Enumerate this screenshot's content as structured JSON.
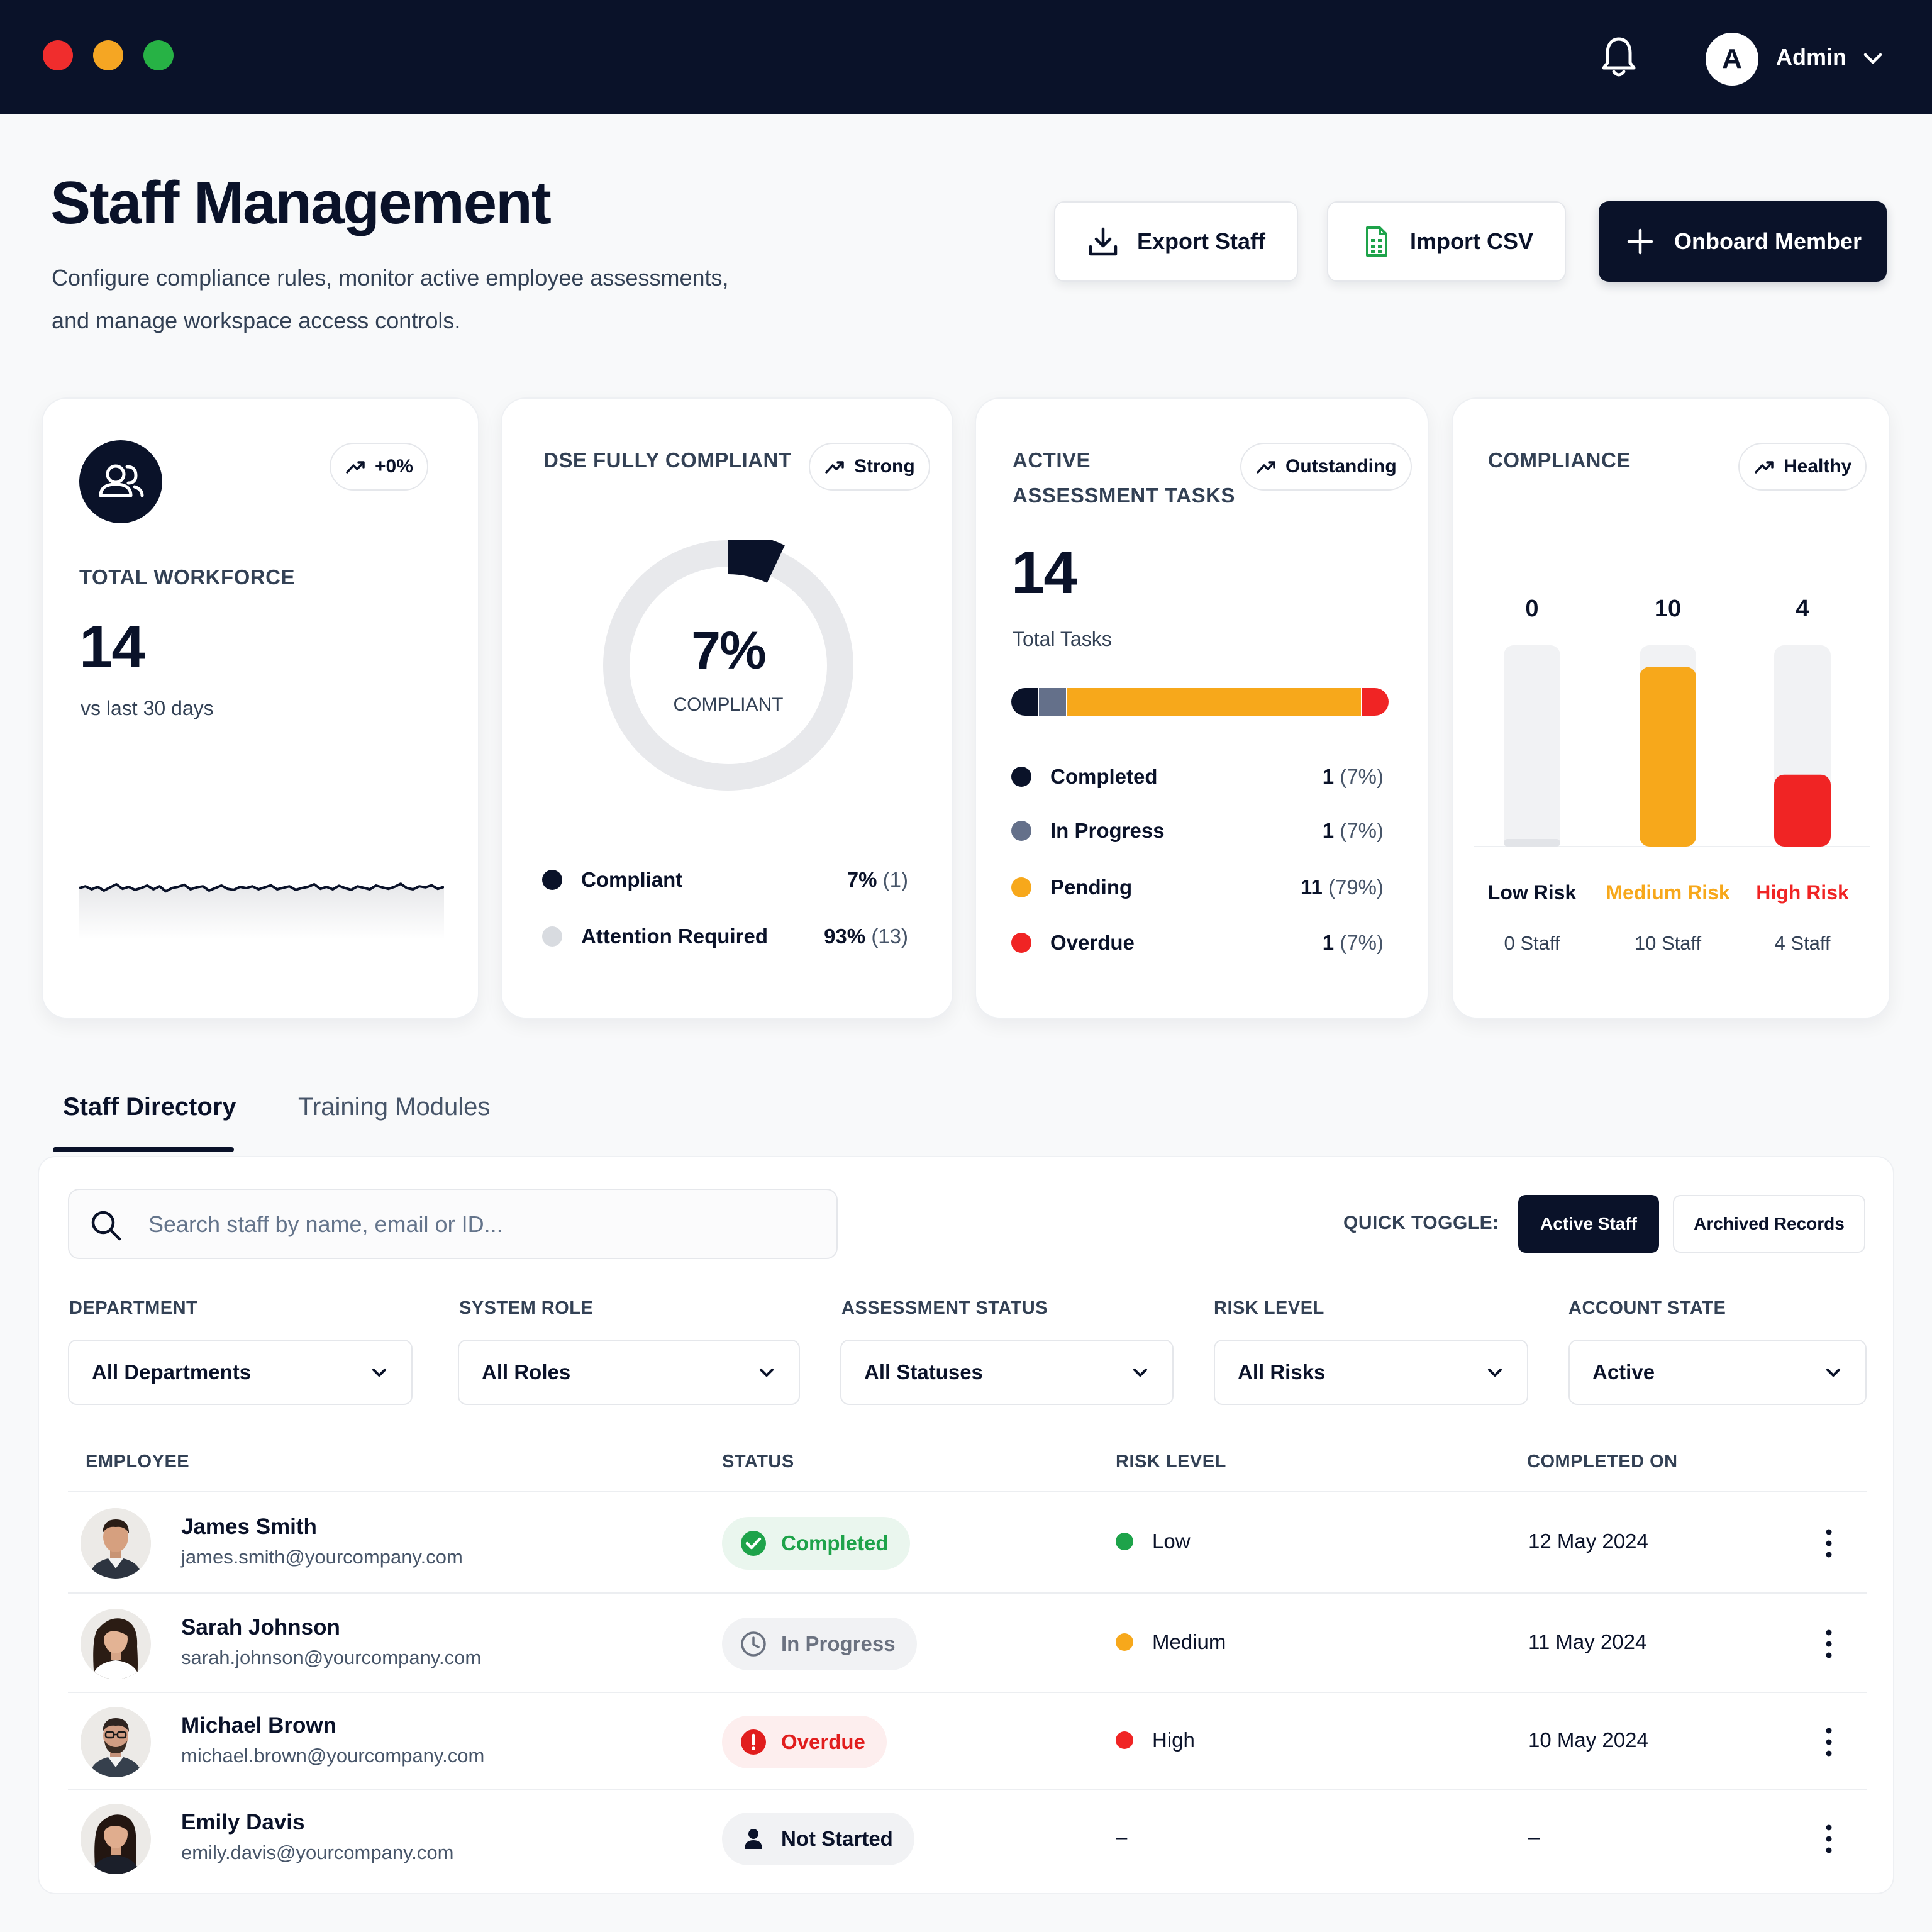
{
  "topbar": {
    "user_initial": "A",
    "user_label": "Admin",
    "icons": {
      "notifications": "bell-icon",
      "menu": "chevron-down-icon"
    }
  },
  "header": {
    "title": "Staff Management",
    "subtitle_line1": "Configure compliance rules, monitor active employee assessments,",
    "subtitle_line2": "and manage workspace access controls.",
    "buttons": {
      "export": "Export Staff",
      "import": "Import CSV",
      "onboard": "Onboard Member"
    }
  },
  "cards": {
    "workforce": {
      "trend": "+0%",
      "label": "TOTAL WORKFORCE",
      "value": "14",
      "caption": "vs last 30 days",
      "sparkline": [
        0.55,
        0.62,
        0.5,
        0.6,
        0.45,
        0.58,
        0.7,
        0.52,
        0.6,
        0.48,
        0.55,
        0.65,
        0.5,
        0.62,
        0.42,
        0.55,
        0.6,
        0.68,
        0.5,
        0.58,
        0.62,
        0.45,
        0.55,
        0.65,
        0.52,
        0.48,
        0.6,
        0.55,
        0.62,
        0.5,
        0.58,
        0.66,
        0.5,
        0.56,
        0.62,
        0.48,
        0.55,
        0.6,
        0.7,
        0.52,
        0.6,
        0.5,
        0.64,
        0.55,
        0.48,
        0.62,
        0.56,
        0.5,
        0.65,
        0.58,
        0.52,
        0.6,
        0.72,
        0.55,
        0.5,
        0.62,
        0.58,
        0.66,
        0.52,
        0.6
      ]
    },
    "dse": {
      "label": "DSE FULLY COMPLIANT",
      "badge": "Strong",
      "percent_text": "7%",
      "percent_caption": "COMPLIANT",
      "percent": 7,
      "legend": [
        {
          "label": "Compliant",
          "pct": "7%",
          "count": "(1)",
          "color": "#0a1229"
        },
        {
          "label": "Attention Required",
          "pct": "93%",
          "count": "(13)",
          "color": "#d8dbe0"
        }
      ]
    },
    "tasks": {
      "label_line1": "ACTIVE",
      "label_line2": "ASSESSMENT TASKS",
      "badge": "Outstanding",
      "value": "14",
      "caption": "Total Tasks",
      "segments": [
        {
          "label": "Completed",
          "count": 1,
          "count_text": "1",
          "pct": "(7%)",
          "color": "#0a1229"
        },
        {
          "label": "In Progress",
          "count": 1,
          "count_text": "1",
          "pct": "(7%)",
          "color": "#64708a"
        },
        {
          "label": "Pending",
          "count": 11,
          "count_text": "11",
          "pct": "(79%)",
          "color": "#f7a81b"
        },
        {
          "label": "Overdue",
          "count": 1,
          "count_text": "1",
          "pct": "(7%)",
          "color": "#f02424"
        }
      ]
    },
    "compliance": {
      "label": "COMPLIANCE",
      "badge": "Healthy"
    }
  },
  "chart_data": {
    "type": "bar",
    "categories": [
      "Low Risk",
      "Medium Risk",
      "High Risk"
    ],
    "values": [
      0,
      10,
      4
    ],
    "value_labels": [
      "0",
      "10",
      "4"
    ],
    "sub_labels": [
      "0 Staff",
      "10 Staff",
      "4 Staff"
    ],
    "colors": [
      "#e5e7eb",
      "#f7a81b",
      "#f02424"
    ],
    "label_colors": [
      "#0a1229",
      "#f7a81b",
      "#f02424"
    ],
    "ylim": [
      0,
      10.5
    ],
    "grid": false
  },
  "tabs": [
    {
      "label": "Staff Directory",
      "active": true
    },
    {
      "label": "Training Modules",
      "active": false
    }
  ],
  "directory": {
    "search_placeholder": "Search staff by name, email or ID...",
    "quick_toggle_label": "QUICK TOGGLE:",
    "toggle_active": "Active Staff",
    "toggle_archived": "Archived Records",
    "filters": [
      {
        "label": "DEPARTMENT",
        "value": "All Departments"
      },
      {
        "label": "SYSTEM ROLE",
        "value": "All Roles"
      },
      {
        "label": "ASSESSMENT STATUS",
        "value": "All Statuses"
      },
      {
        "label": "RISK LEVEL",
        "value": "All Risks"
      },
      {
        "label": "ACCOUNT STATE",
        "value": "Active"
      }
    ],
    "columns": [
      "EMPLOYEE",
      "STATUS",
      "RISK LEVEL",
      "COMPLETED ON"
    ],
    "rows": [
      {
        "name": "James Smith",
        "email": "james.smith@yourcompany.com",
        "status": "Completed",
        "risk": "Low",
        "completed_on": "12 May 2024"
      },
      {
        "name": "Sarah Johnson",
        "email": "sarah.johnson@yourcompany.com",
        "status": "In Progress",
        "risk": "Medium",
        "completed_on": "11 May 2024"
      },
      {
        "name": "Michael Brown",
        "email": "michael.brown@yourcompany.com",
        "status": "Overdue",
        "risk": "High",
        "completed_on": "10 May 2024"
      },
      {
        "name": "Emily Davis",
        "email": "emily.davis@yourcompany.com",
        "status": "Not Started",
        "risk": "–",
        "completed_on": "–"
      }
    ],
    "status_colors": {
      "Completed": "#1ea34a",
      "In Progress": "#6b7280",
      "Overdue": "#e11d1d",
      "Not Started": "#0a1229"
    },
    "risk_colors": {
      "Low": "#1ea34a",
      "Medium": "#f7a81b",
      "High": "#f02424"
    }
  }
}
